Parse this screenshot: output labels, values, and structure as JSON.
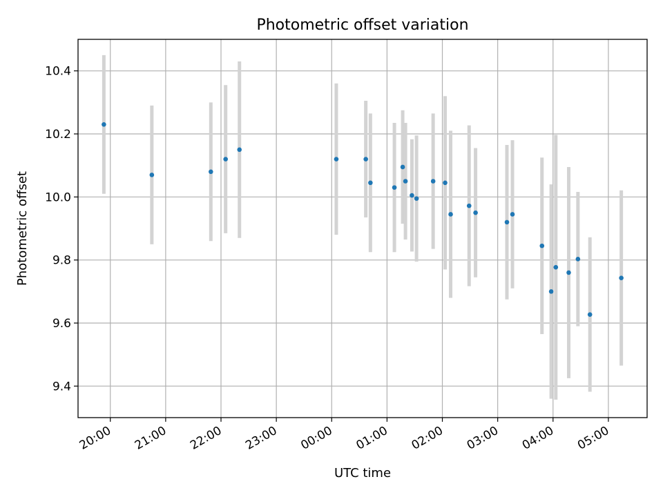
{
  "chart_data": {
    "type": "scatter",
    "title": "Photometric offset variation",
    "xlabel": "UTC time",
    "ylabel": "Photometric offset",
    "x_type": "time",
    "xlim": [
      "19:25",
      "05:42"
    ],
    "ylim": [
      9.3,
      10.5
    ],
    "xticks": [
      "20:00",
      "21:00",
      "22:00",
      "23:00",
      "00:00",
      "01:00",
      "02:00",
      "03:00",
      "04:00",
      "05:00"
    ],
    "yticks": [
      "9.4",
      "9.6",
      "9.8",
      "10.0",
      "10.2",
      "10.4"
    ],
    "grid": true,
    "marker_color": "#1f77b4",
    "errorbar_color": "#d3d3d3",
    "points": [
      {
        "t": "19:53",
        "y": 10.23,
        "err": 0.22
      },
      {
        "t": "20:45",
        "y": 10.07,
        "err": 0.22
      },
      {
        "t": "21:49",
        "y": 10.08,
        "err": 0.22
      },
      {
        "t": "22:05",
        "y": 10.12,
        "err": 0.235
      },
      {
        "t": "22:20",
        "y": 10.15,
        "err": 0.28
      },
      {
        "t": "00:05",
        "y": 10.12,
        "err": 0.24
      },
      {
        "t": "00:37",
        "y": 10.12,
        "err": 0.185
      },
      {
        "t": "00:42",
        "y": 10.045,
        "err": 0.22
      },
      {
        "t": "01:08",
        "y": 10.03,
        "err": 0.205
      },
      {
        "t": "01:17",
        "y": 10.095,
        "err": 0.18
      },
      {
        "t": "01:20",
        "y": 10.05,
        "err": 0.185
      },
      {
        "t": "01:27",
        "y": 10.005,
        "err": 0.178
      },
      {
        "t": "01:32",
        "y": 9.995,
        "err": 0.2
      },
      {
        "t": "01:50",
        "y": 10.05,
        "err": 0.215
      },
      {
        "t": "02:03",
        "y": 10.045,
        "err": 0.275
      },
      {
        "t": "02:09",
        "y": 9.945,
        "err": 0.265
      },
      {
        "t": "02:29",
        "y": 9.972,
        "err": 0.255
      },
      {
        "t": "02:36",
        "y": 9.95,
        "err": 0.205
      },
      {
        "t": "03:10",
        "y": 9.92,
        "err": 0.245
      },
      {
        "t": "03:16",
        "y": 9.945,
        "err": 0.235
      },
      {
        "t": "03:48",
        "y": 9.845,
        "err": 0.28
      },
      {
        "t": "03:58",
        "y": 9.7,
        "err": 0.34
      },
      {
        "t": "04:03",
        "y": 9.777,
        "err": 0.42
      },
      {
        "t": "04:17",
        "y": 9.76,
        "err": 0.335
      },
      {
        "t": "04:27",
        "y": 9.803,
        "err": 0.213
      },
      {
        "t": "04:40",
        "y": 9.627,
        "err": 0.245
      },
      {
        "t": "05:14",
        "y": 9.743,
        "err": 0.278
      }
    ]
  }
}
